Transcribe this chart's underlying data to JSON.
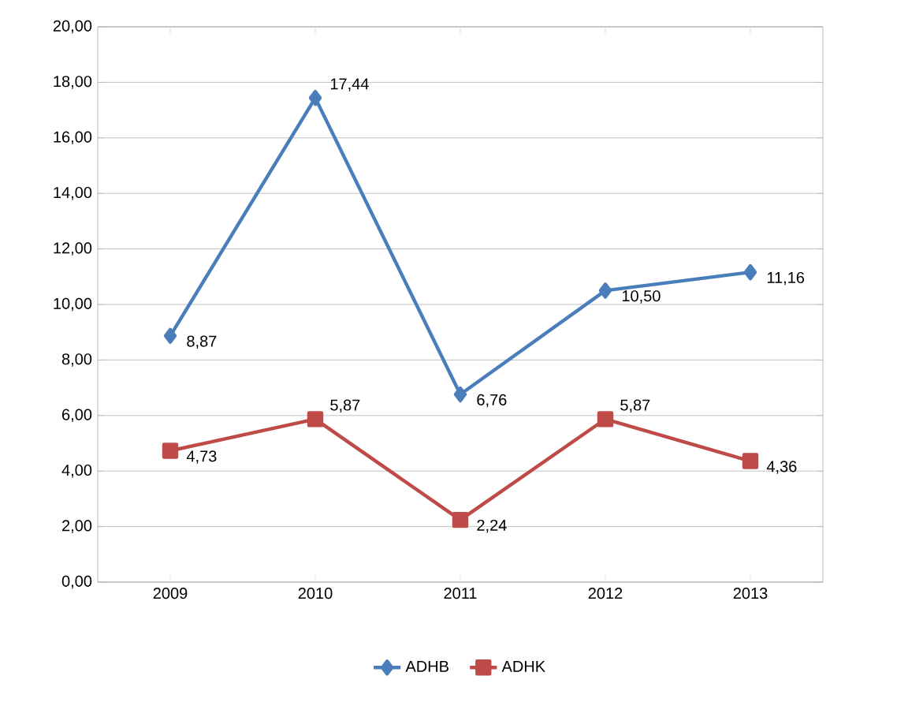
{
  "chart_data": {
    "type": "line",
    "categories": [
      "2009",
      "2010",
      "2011",
      "2012",
      "2013"
    ],
    "series": [
      {
        "name": "ADHB",
        "color": "#4a7ebb",
        "marker": "diamond",
        "values": [
          8.87,
          17.44,
          6.76,
          10.5,
          11.16
        ],
        "value_labels": [
          "8,87",
          "17,44",
          "6,76",
          "10,50",
          "11,16"
        ]
      },
      {
        "name": "ADHK",
        "color": "#be4b48",
        "marker": "square",
        "values": [
          4.73,
          5.87,
          2.24,
          5.87,
          4.36
        ],
        "value_labels": [
          "4,73",
          "5,87",
          "2,24",
          "5,87",
          "4,36"
        ]
      }
    ],
    "ylim": [
      0,
      20
    ],
    "yticks": [
      {
        "value": 0,
        "label": "0,00"
      },
      {
        "value": 2,
        "label": "2,00"
      },
      {
        "value": 4,
        "label": "4,00"
      },
      {
        "value": 6,
        "label": "6,00"
      },
      {
        "value": 8,
        "label": "8,00"
      },
      {
        "value": 10,
        "label": "10,00"
      },
      {
        "value": 12,
        "label": "12,00"
      },
      {
        "value": 14,
        "label": "14,00"
      },
      {
        "value": 16,
        "label": "16,00"
      },
      {
        "value": 18,
        "label": "18,00"
      },
      {
        "value": 20,
        "label": "20,00"
      }
    ],
    "grid": "y",
    "legend": "bottom"
  }
}
